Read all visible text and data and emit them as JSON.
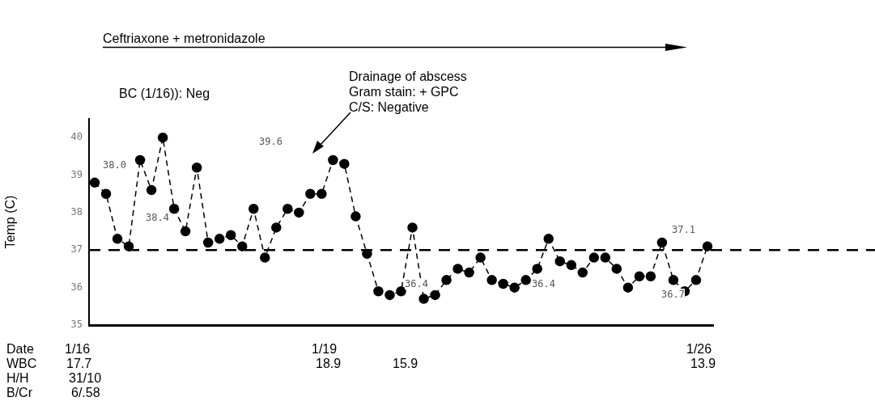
{
  "chart_data": {
    "type": "line",
    "ylabel": "Temp (C)",
    "categories": [
      null,
      null,
      null,
      null,
      null,
      null,
      null,
      null,
      null,
      null,
      null,
      null,
      null,
      null,
      null,
      null,
      null,
      null,
      null,
      null,
      null,
      null,
      null,
      null,
      null,
      null,
      null,
      null,
      null,
      null,
      null,
      null,
      null,
      null,
      null,
      null,
      null,
      null,
      null,
      null,
      null,
      null,
      null,
      null,
      null,
      null,
      null,
      null,
      null,
      null,
      null,
      null,
      null,
      null,
      null
    ],
    "series": [
      {
        "color": "#000000",
        "values": [
          38.8,
          38.5,
          37.3,
          37.1,
          39.4,
          38.6,
          40.0,
          38.1,
          37.5,
          39.2,
          37.2,
          37.3,
          37.4,
          37.1,
          38.1,
          36.8,
          37.6,
          38.1,
          38.0,
          38.5,
          38.5,
          39.4,
          39.3,
          37.9,
          36.9,
          35.9,
          35.8,
          35.9,
          37.6,
          35.7,
          35.8,
          36.2,
          36.5,
          36.4,
          36.8,
          36.2,
          36.1,
          36.0,
          36.2,
          36.5,
          37.3,
          36.7,
          36.6,
          36.4,
          36.8,
          36.8,
          36.5,
          36.0,
          36.3,
          36.3,
          37.2,
          36.2,
          35.9,
          36.2,
          37.1
        ]
      }
    ],
    "ylim": [
      35,
      40.5
    ],
    "yticks": [
      35,
      36,
      37,
      38,
      39,
      40
    ],
    "grid": false,
    "legend": false,
    "tick_labels": "y",
    "marker": "circle",
    "line_style": "dashed",
    "ref_lines": [
      {
        "axis": "y",
        "value": 37,
        "line_style": "dashed",
        "color": "#000000"
      }
    ],
    "annotations": [
      "Ceftriaxone + metronidazole",
      "BC (1/16)): Neg",
      "Drainage of abscess\nGram stain: + GPC\nC/S: Negative",
      "38.0",
      "39.6",
      "38.4",
      "36.4",
      "36.4",
      "36.7",
      "37.1",
      "Date",
      "1/16",
      "1/19",
      "1/26",
      "WBC",
      "17.7",
      "18.9",
      "15.9",
      "13.9",
      "H/H",
      "31/10",
      "B/Cr",
      "6/.58"
    ]
  }
}
